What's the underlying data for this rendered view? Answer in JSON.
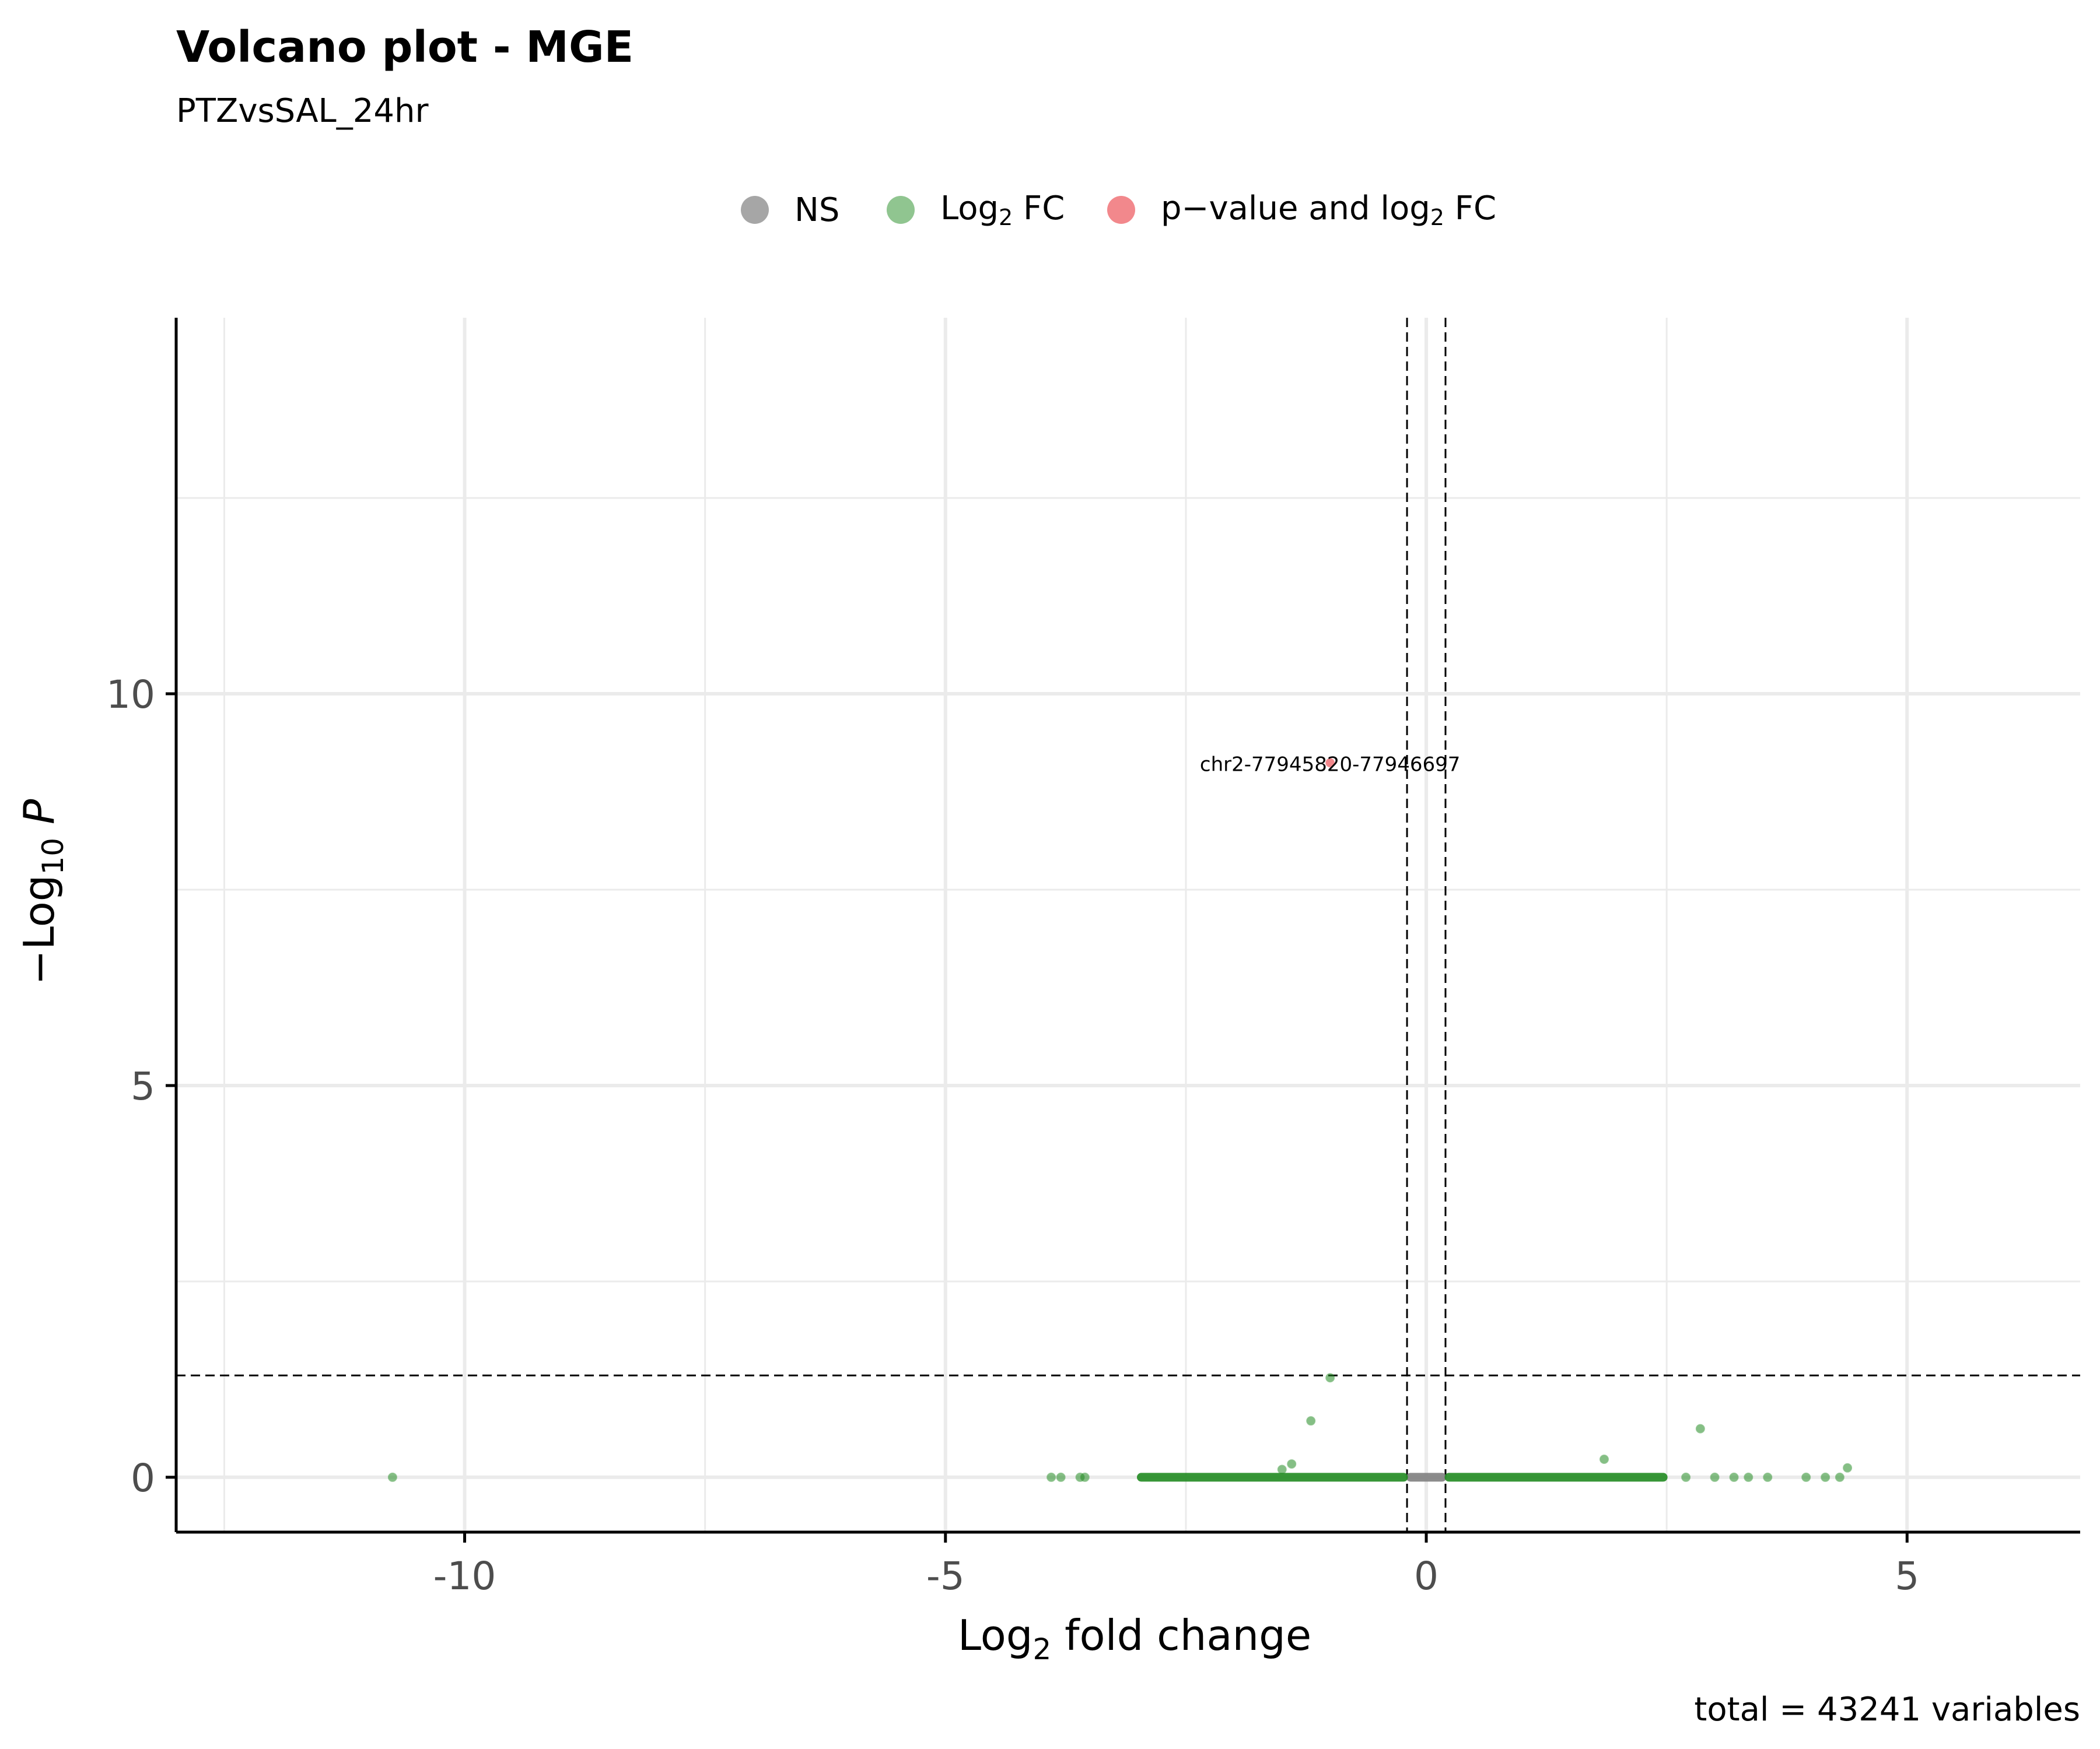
{
  "title": "Volcano plot - MGE",
  "subtitle": "PTZvsSAL_24hr",
  "caption": "total = 43241 variables",
  "legend": [
    {
      "label": "NS",
      "color": "#808080"
    },
    {
      "label_main": "Log",
      "label_sub": "2",
      "label_tail": " FC",
      "color": "#228B22"
    },
    {
      "label_main": "p−value and log",
      "label_sub": "2",
      "label_tail": " FC",
      "color": "#E8262E"
    }
  ],
  "axes": {
    "xlabel_main": "Log",
    "xlabel_sub": "2",
    "xlabel_tail": " fold change",
    "ylabel_main": "−Log",
    "ylabel_sub": "10",
    "ylabel_tail": " P"
  },
  "chart_data": {
    "type": "scatter",
    "title": "Volcano plot - MGE",
    "subtitle": "PTZvsSAL_24hr",
    "xlabel": "Log2 fold change",
    "ylabel": "−Log10 P",
    "xlim": [
      -13,
      6.8
    ],
    "ylim": [
      -0.7,
      14.8
    ],
    "xticks": [
      -10,
      -5,
      0,
      5
    ],
    "xtick_labels": [
      "-10",
      "-5",
      "0",
      "5"
    ],
    "yticks": [
      0,
      5,
      10
    ],
    "ytick_labels": [
      "0",
      "5",
      "10"
    ],
    "grid": true,
    "legend_position": "top",
    "thresholds": {
      "fc_cutoff": [
        -0.2,
        0.2
      ],
      "p_cutoff_neglog10": 1.3
    },
    "total_variables": 43241,
    "series": [
      {
        "name": "NS",
        "color": "#808080",
        "bands": [
          {
            "x_from": -0.2,
            "x_to": 0.2,
            "y": 0
          }
        ]
      },
      {
        "name": "Log2 FC",
        "color": "#228B22",
        "bands": [
          {
            "x_from": -3.0,
            "x_to": -0.2,
            "y": 0
          },
          {
            "x_from": 0.2,
            "x_to": 2.5,
            "y": 0
          }
        ],
        "points": [
          {
            "x": -10.75,
            "y": 0.0
          },
          {
            "x": -3.9,
            "y": 0.0
          },
          {
            "x": -3.8,
            "y": 0.0
          },
          {
            "x": -3.6,
            "y": 0.0
          },
          {
            "x": -3.55,
            "y": 0.0
          },
          {
            "x": -1.0,
            "y": 1.27
          },
          {
            "x": -1.2,
            "y": 0.72
          },
          {
            "x": -1.4,
            "y": 0.17
          },
          {
            "x": -1.5,
            "y": 0.1
          },
          {
            "x": 1.85,
            "y": 0.23
          },
          {
            "x": 2.85,
            "y": 0.62
          },
          {
            "x": 2.7,
            "y": 0.0
          },
          {
            "x": 3.0,
            "y": 0.0
          },
          {
            "x": 3.2,
            "y": 0.0
          },
          {
            "x": 3.35,
            "y": 0.0
          },
          {
            "x": 3.55,
            "y": 0.0
          },
          {
            "x": 3.95,
            "y": 0.0
          },
          {
            "x": 4.15,
            "y": 0.0
          },
          {
            "x": 4.3,
            "y": 0.0
          },
          {
            "x": 4.38,
            "y": 0.12
          }
        ]
      },
      {
        "name": "p−value and log2 FC",
        "color": "#E8262E",
        "points": [
          {
            "x": -1.0,
            "y": 9.12,
            "label": "chr2-77945820-77946697"
          }
        ]
      }
    ]
  }
}
